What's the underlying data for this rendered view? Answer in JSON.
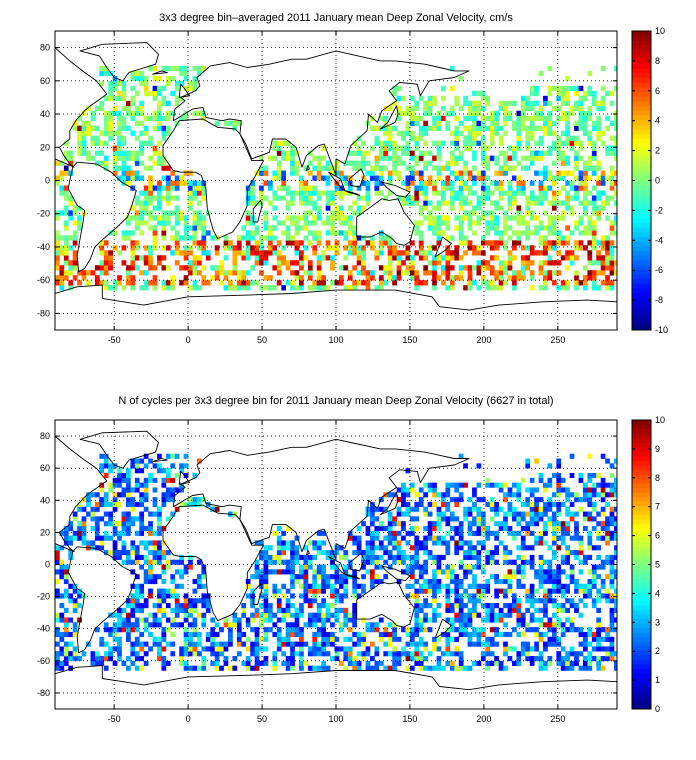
{
  "chart_data": [
    {
      "type": "heatmap",
      "title": "3x3 degree bin–averaged 2011 January mean Deep Zonal Velocity, cm/s",
      "xlim": [
        -90,
        290
      ],
      "ylim": [
        -90,
        90
      ],
      "xticks": [
        -50,
        0,
        50,
        100,
        150,
        200,
        250
      ],
      "yticks": [
        80,
        60,
        40,
        20,
        0,
        -20,
        -40,
        -60,
        -80
      ],
      "colorbar": {
        "min": -10,
        "max": 10,
        "ticks": [
          10,
          8,
          6,
          4,
          2,
          0,
          -2,
          -4,
          -6,
          -8,
          -10
        ]
      },
      "grid": true,
      "bin_size_deg": 3
    },
    {
      "type": "heatmap",
      "title": "N of cycles per 3x3 degree bin for 2011 January mean Deep Zonal Velocity (6627 in total)",
      "xlim": [
        -90,
        290
      ],
      "ylim": [
        -90,
        90
      ],
      "xticks": [
        -50,
        0,
        50,
        100,
        150,
        200,
        250
      ],
      "yticks": [
        80,
        60,
        40,
        20,
        0,
        -20,
        -40,
        -60,
        -80
      ],
      "colorbar": {
        "min": 0,
        "max": 10,
        "ticks": [
          10,
          9,
          8,
          7,
          6,
          5,
          4,
          3,
          2,
          1,
          0
        ]
      },
      "grid": true,
      "bin_size_deg": 3
    }
  ]
}
